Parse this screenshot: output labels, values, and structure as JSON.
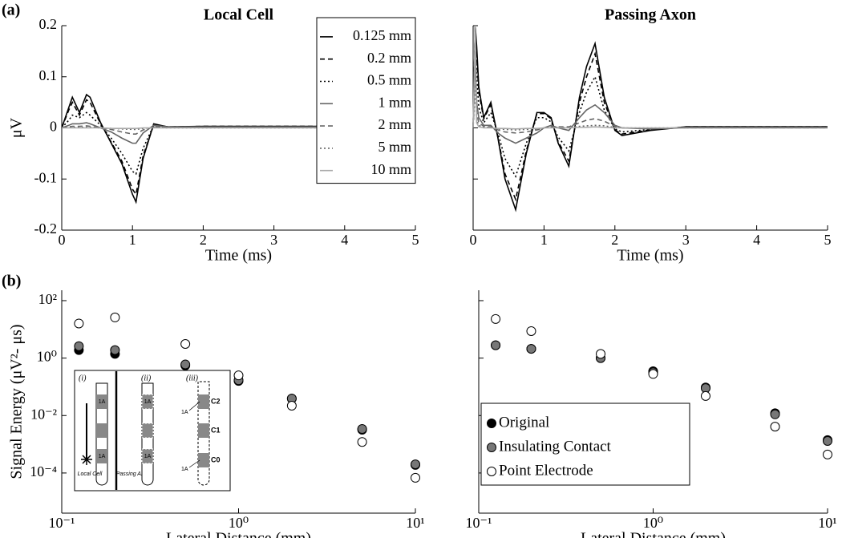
{
  "panel_labels": [
    "(a)",
    "(b)"
  ],
  "chart_data": [
    {
      "type": "line",
      "title": "Local Cell",
      "xlabel": "Time (ms)",
      "ylabel": "μV",
      "xlim": [
        0,
        5
      ],
      "xticks": [
        0,
        1,
        2,
        3,
        4,
        5
      ],
      "ylim": [
        -0.2,
        0.2
      ],
      "yticks": [
        -0.2,
        -0.1,
        0,
        0.1,
        0.2
      ],
      "legend": "upper right",
      "x": [
        0,
        0.1,
        0.15,
        0.25,
        0.35,
        0.4,
        0.55,
        0.7,
        0.85,
        1.0,
        1.05,
        1.15,
        1.3,
        1.5,
        2,
        5
      ],
      "series": [
        {
          "name": "0.125 mm",
          "color": "#000000",
          "style": "solid",
          "values": [
            0,
            0.04,
            0.06,
            0.03,
            0.065,
            0.06,
            0.01,
            -0.03,
            -0.07,
            -0.13,
            -0.145,
            -0.06,
            0.008,
            0.002,
            0.003,
            0.003
          ]
        },
        {
          "name": "0.2 mm",
          "color": "#000000",
          "style": "dashed",
          "values": [
            0,
            0.035,
            0.05,
            0.025,
            0.055,
            0.05,
            0.008,
            -0.028,
            -0.065,
            -0.12,
            -0.13,
            -0.055,
            0.006,
            0.002,
            0.003,
            0.003
          ]
        },
        {
          "name": "0.5 mm",
          "color": "#000000",
          "style": "dotted",
          "values": [
            0,
            0.015,
            0.025,
            0.02,
            0.03,
            0.025,
            0.005,
            -0.02,
            -0.05,
            -0.085,
            -0.09,
            -0.04,
            0.005,
            0.002,
            0.002,
            0.002
          ]
        },
        {
          "name": "1 mm",
          "color": "#666666",
          "style": "solid",
          "values": [
            0,
            0.005,
            0.008,
            0.008,
            0.01,
            0.008,
            0,
            -0.008,
            -0.02,
            -0.03,
            -0.03,
            -0.01,
            0.005,
            0.002,
            0.002,
            0.002
          ]
        },
        {
          "name": "2 mm",
          "color": "#666666",
          "style": "dashed",
          "values": [
            0,
            0.002,
            0.003,
            0.003,
            0.004,
            0.003,
            0,
            -0.003,
            -0.008,
            -0.012,
            -0.012,
            -0.004,
            0.002,
            0.001,
            0.001,
            0.001
          ]
        },
        {
          "name": "5 mm",
          "color": "#666666",
          "style": "dotted",
          "values": [
            0,
            0.001,
            0.001,
            0.001,
            0.001,
            0.001,
            0,
            -0.001,
            -0.002,
            -0.003,
            -0.003,
            -0.001,
            0.001,
            0,
            0,
            0
          ]
        },
        {
          "name": "10 mm",
          "color": "#aaaaaa",
          "style": "solid",
          "values": [
            0,
            0,
            0,
            0,
            0,
            0,
            0,
            -0.001,
            -0.001,
            -0.001,
            -0.001,
            0,
            0,
            0,
            0,
            0
          ]
        }
      ]
    },
    {
      "type": "line",
      "title": "Passing Axon",
      "xlabel": "Time (ms)",
      "xlim": [
        0,
        5
      ],
      "xticks": [
        0,
        1,
        2,
        3,
        4,
        5
      ],
      "ylim": [
        -0.2,
        0.2
      ],
      "yticks": [
        -0.2,
        -0.1,
        0,
        0.1,
        0.2
      ],
      "ytick_labels": false,
      "x": [
        0,
        0.03,
        0.05,
        0.08,
        0.15,
        0.25,
        0.35,
        0.45,
        0.6,
        0.75,
        0.9,
        1.0,
        1.1,
        1.2,
        1.35,
        1.5,
        1.6,
        1.72,
        1.85,
        2.0,
        2.1,
        2.5,
        3,
        5
      ],
      "series": [
        {
          "color": "#000000",
          "style": "solid",
          "values": [
            0,
            0.2,
            0.16,
            0.08,
            0.02,
            0.05,
            -0.02,
            -0.1,
            -0.16,
            -0.05,
            0.03,
            0.03,
            0.02,
            -0.03,
            -0.075,
            0.06,
            0.12,
            0.165,
            0.06,
            -0.005,
            -0.015,
            -0.005,
            0.002,
            0.002
          ]
        },
        {
          "color": "#000000",
          "style": "dashed",
          "values": [
            0,
            0.2,
            0.14,
            0.07,
            0.018,
            0.045,
            -0.018,
            -0.09,
            -0.14,
            -0.045,
            0.028,
            0.028,
            0.018,
            -0.027,
            -0.065,
            0.05,
            0.1,
            0.145,
            0.05,
            -0.004,
            -0.012,
            -0.004,
            0.002,
            0.002
          ]
        },
        {
          "color": "#000000",
          "style": "dotted",
          "values": [
            0,
            0.18,
            0.1,
            0.04,
            0.01,
            0.03,
            -0.01,
            -0.06,
            -0.095,
            -0.03,
            0.02,
            0.02,
            0.012,
            -0.018,
            -0.045,
            0.03,
            0.07,
            0.1,
            0.035,
            -0.002,
            -0.008,
            -0.003,
            0.001,
            0.001
          ]
        },
        {
          "color": "#666666",
          "style": "solid",
          "values": [
            0,
            0.15,
            0.05,
            0.02,
            0.005,
            0.005,
            -0.01,
            -0.02,
            -0.03,
            -0.02,
            -0.01,
            0,
            0.005,
            0,
            -0.005,
            0.02,
            0.035,
            0.045,
            0.03,
            0.005,
            0,
            -0.002,
            0,
            0
          ]
        },
        {
          "color": "#666666",
          "style": "dashed",
          "values": [
            0,
            0.12,
            0.03,
            0.01,
            0.003,
            0.002,
            -0.004,
            -0.008,
            -0.01,
            -0.008,
            -0.004,
            0,
            0.002,
            0.002,
            0.002,
            0.01,
            0.015,
            0.018,
            0.013,
            0.003,
            0,
            -0.001,
            0,
            0
          ]
        },
        {
          "color": "#666666",
          "style": "dotted",
          "values": [
            0,
            0.08,
            0.015,
            0.005,
            0.001,
            0.001,
            -0.002,
            -0.003,
            -0.004,
            -0.003,
            -0.002,
            0,
            0.001,
            0.001,
            0.001,
            0.003,
            0.004,
            0.005,
            0.004,
            0.001,
            0,
            0,
            0,
            0
          ]
        },
        {
          "color": "#aaaaaa",
          "style": "solid",
          "values": [
            0,
            0.2,
            0.01,
            0.002,
            0,
            0,
            -0.001,
            -0.001,
            -0.002,
            -0.001,
            -0.001,
            0,
            0,
            0,
            0,
            0.001,
            0.001,
            0.002,
            0.001,
            0,
            0,
            0,
            0,
            0
          ]
        }
      ]
    },
    {
      "type": "scatter",
      "xlabel": "Lateral Distance (mm)",
      "ylabel": "Signal Energy (μV²- μs)",
      "xscale": "log",
      "yscale": "log",
      "xlim": [
        0.1,
        10
      ],
      "xticks": [
        {
          "value": 0.1,
          "label": "10⁻¹"
        },
        {
          "value": 1,
          "label": "10⁰"
        },
        {
          "value": 10,
          "label": "10¹"
        }
      ],
      "ylim": [
        4e-06,
        230
      ],
      "yticks": [
        {
          "value": 0.0001,
          "label": "10⁻⁴"
        },
        {
          "value": 0.01,
          "label": "10⁻²"
        },
        {
          "value": 1,
          "label": "10⁰"
        },
        {
          "value": 100,
          "label": "10²"
        }
      ],
      "x": [
        0.125,
        0.2,
        0.5,
        1,
        2,
        5,
        10
      ],
      "series": [
        {
          "color": "#000000",
          "values": [
            1.9,
            1.4,
            0.55,
            0.16,
            0.039,
            0.0032,
            0.00019
          ]
        },
        {
          "color": "#777777",
          "values": [
            2.6,
            1.9,
            0.6,
            0.17,
            0.039,
            0.0034,
            0.0002
          ]
        },
        {
          "color": "#ffffff",
          "values": [
            16,
            26,
            3.1,
            0.25,
            0.022,
            0.0012,
            6.8e-05
          ]
        }
      ]
    },
    {
      "type": "scatter",
      "xlabel": "Lateral Distance (mm)",
      "xscale": "log",
      "yscale": "log",
      "ytick_labels": false,
      "legend": "lower left",
      "xlim": [
        0.1,
        10
      ],
      "xticks": [
        {
          "value": 0.1,
          "label": "10⁻¹"
        },
        {
          "value": 1,
          "label": "10⁰"
        },
        {
          "value": 10,
          "label": "10¹"
        }
      ],
      "ylim": [
        4e-06,
        230
      ],
      "yticks": [
        0.0001,
        0.01,
        1,
        100
      ],
      "x": [
        0.125,
        0.2,
        0.5,
        1,
        2,
        5,
        10
      ],
      "series": [
        {
          "name": "Original",
          "color": "#000000",
          "values": [
            2.8,
            2.1,
            1.0,
            0.35,
            0.095,
            0.012,
            0.0014
          ]
        },
        {
          "name": "Insulating Contact",
          "color": "#777777",
          "values": [
            2.8,
            2.1,
            1.0,
            0.32,
            0.09,
            0.011,
            0.0013
          ]
        },
        {
          "name": "Point Electrode",
          "color": "#ffffff",
          "values": [
            23,
            8.7,
            1.4,
            0.28,
            0.048,
            0.0041,
            0.00044
          ]
        }
      ]
    }
  ],
  "inset": {
    "subpanels": [
      "(i)",
      "(ii)",
      "(iii)"
    ],
    "contact": "1A",
    "contacts": [
      "C2",
      "C1",
      "C0"
    ],
    "local_cell": "Local Cell",
    "passing_axon": "Passing Axon"
  }
}
